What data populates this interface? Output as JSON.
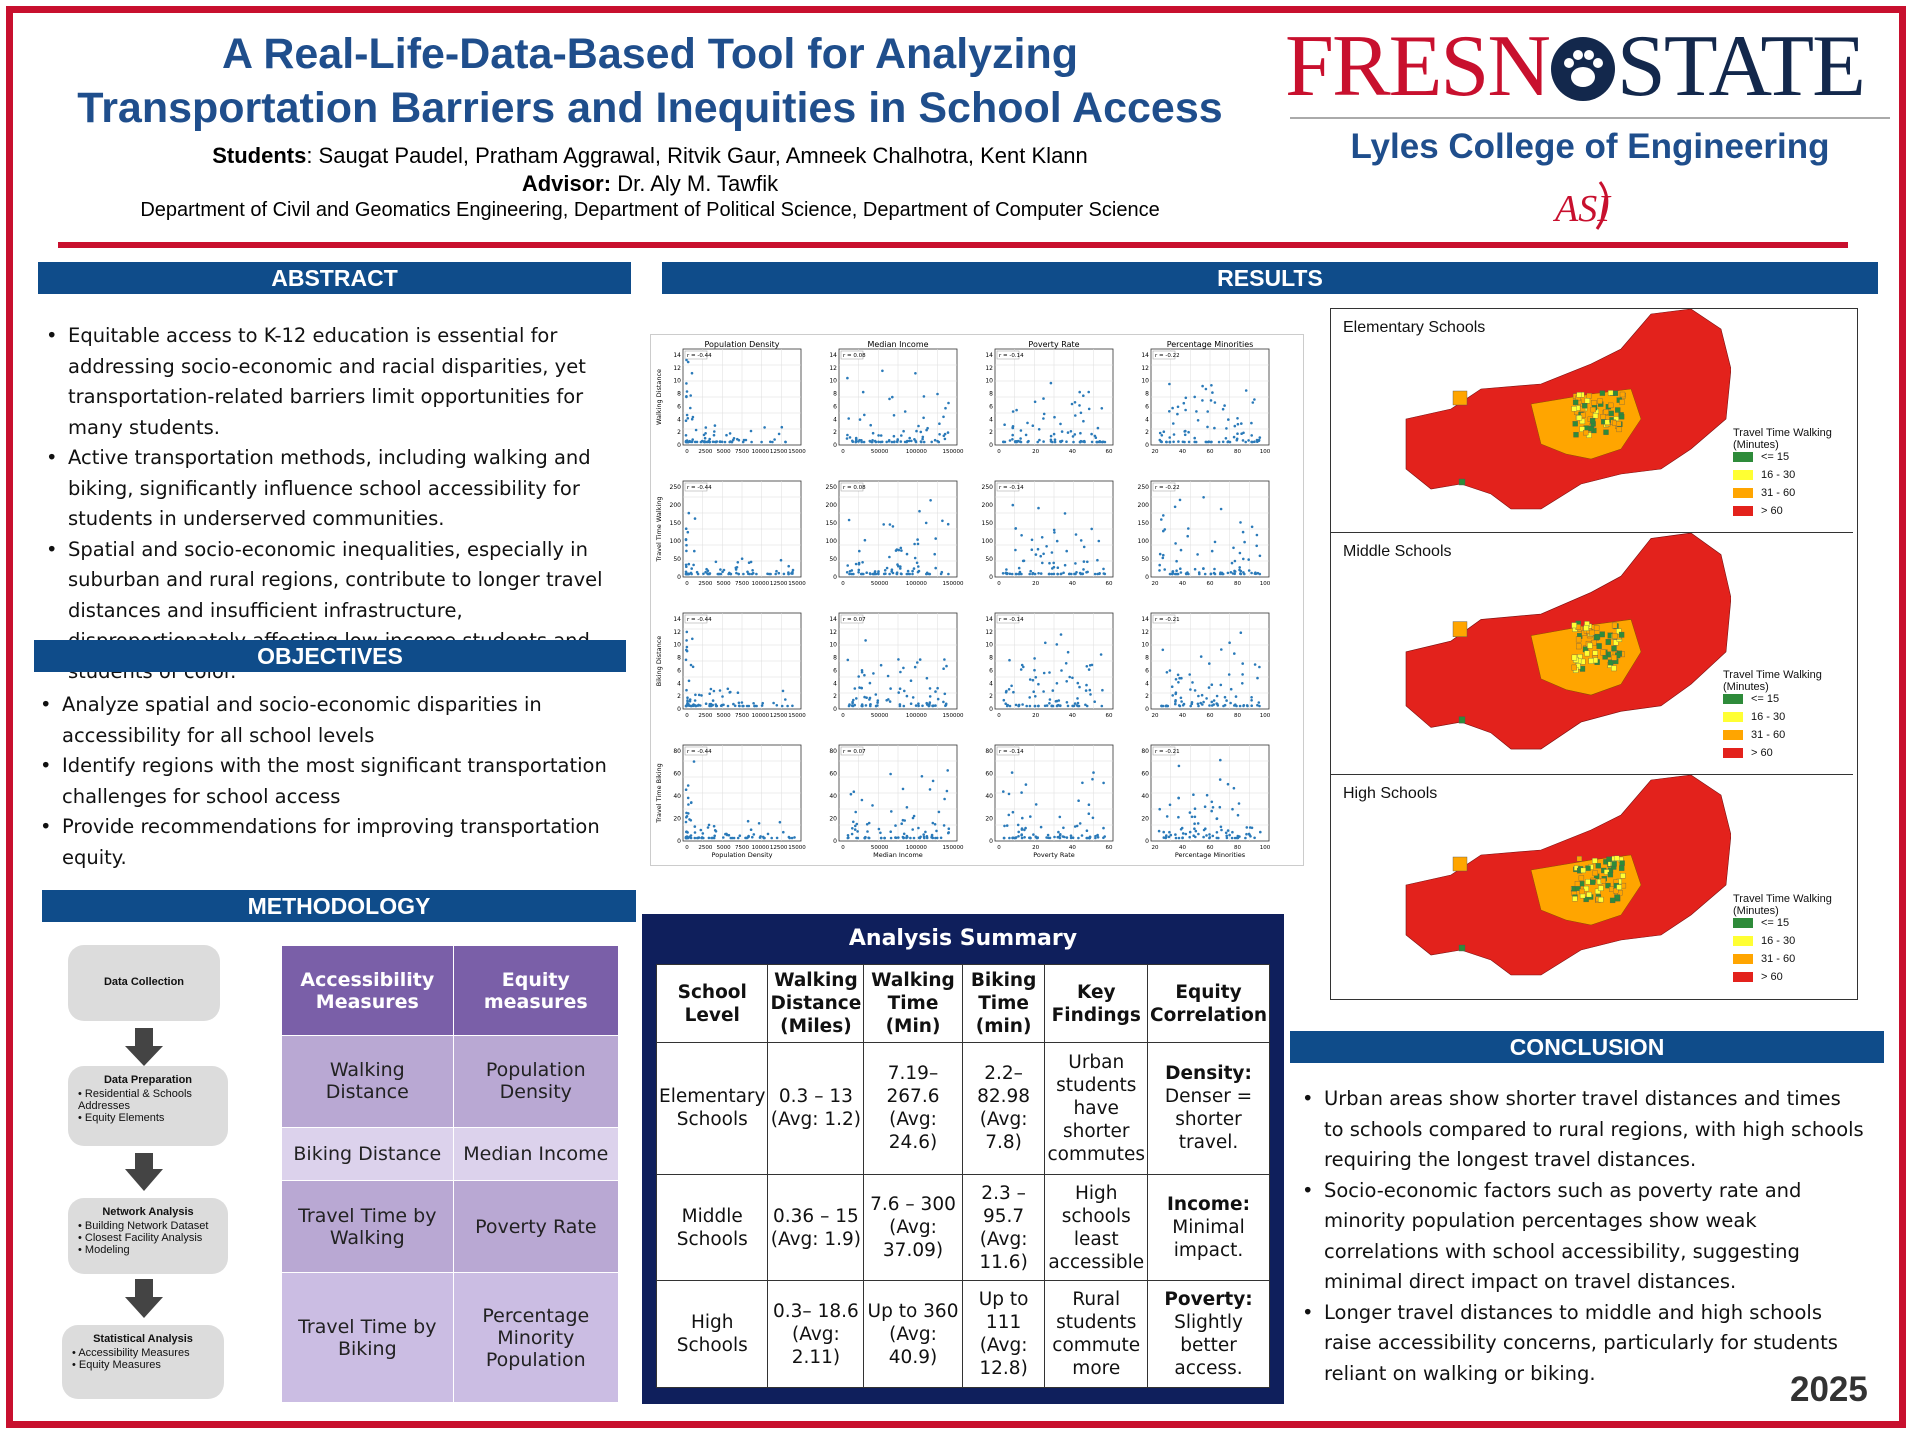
{
  "header": {
    "title_line1": "A Real-Life-Data-Based Tool for Analyzing",
    "title_line2": "Transportation Barriers and Inequities in School Access",
    "students_label": "Students",
    "students": ": Saugat Paudel, Pratham Aggrawal, Ritvik Gaur, Amneek Chalhotra, Kent Klann",
    "advisor_label": "Advisor:",
    "advisor": " Dr. Aly M. Tawfik",
    "departments": "Department of Civil and Geomatics Engineering, Department of Political Science, Department of Computer Science"
  },
  "logo": {
    "left": "FRESN",
    "right": "STATE",
    "college": "Lyles College of Engineering",
    "seal": "ASI"
  },
  "abstract": {
    "heading": "ABSTRACT",
    "items": [
      "Equitable access to K-12 education is essential for addressing socio-economic and racial disparities, yet transportation-related barriers limit opportunities for many students.",
      "Active transportation methods, including walking and biking, significantly influence school accessibility for students in underserved communities.",
      "Spatial and socio-economic inequalities, especially in suburban and rural regions, contribute to longer travel distances and insufficient infrastructure, disproportionately affecting low-income students and students of color."
    ]
  },
  "objectives": {
    "heading": "OBJECTIVES",
    "items": [
      "Analyze spatial and socio-economic disparities in accessibility for all school levels",
      "Identify regions with the most significant transportation challenges for school access",
      "Provide recommendations for improving transportation equity."
    ]
  },
  "methodology": {
    "heading": "METHODOLOGY",
    "flow": [
      {
        "title": "Data Collection",
        "items": []
      },
      {
        "title": "Data Preparation",
        "items": [
          "Residential & Schools Addresses",
          "Equity Elements"
        ]
      },
      {
        "title": "Network Analysis",
        "items": [
          "Building Network Dataset",
          "Closest Facility Analysis",
          "Modeling"
        ]
      },
      {
        "title": "Statistical Analysis",
        "items": [
          "Accessibility Measures",
          "Equity Measures"
        ]
      }
    ],
    "table": {
      "headers": [
        "Accessibility Measures",
        "Equity measures"
      ],
      "rows": [
        [
          "Walking Distance",
          "Population Density"
        ],
        [
          "Biking Distance",
          "Median Income"
        ],
        [
          "Travel Time by Walking",
          "Poverty Rate"
        ],
        [
          "Travel Time by Biking",
          "Percentage Minority Population"
        ]
      ]
    }
  },
  "results": {
    "heading": "RESULTS",
    "scatter": {
      "col_titles": [
        "Population Density",
        "Median Income",
        "Poverty Rate",
        "Percentage Minorities"
      ],
      "row_labels": [
        "Walking Distance",
        "Travel Time Walking",
        "Biking Distance",
        "Travel Time Biking"
      ],
      "r_values": [
        [
          "r = -0.44",
          "r = 0.08",
          "r = -0.14",
          "r = -0.22"
        ],
        [
          "r = -0.44",
          "r = 0.08",
          "r = -0.14",
          "r = -0.22"
        ],
        [
          "r = -0.44",
          "r = 0.07",
          "r = -0.14",
          "r = -0.21"
        ],
        [
          "r = -0.44",
          "r = 0.07",
          "r = -0.14",
          "r = -0.21"
        ]
      ],
      "x_ticks": [
        [
          "0",
          "2500",
          "5000",
          "7500",
          "10000",
          "12500",
          "15000"
        ],
        [
          "0",
          "50000",
          "100000",
          "150000"
        ],
        [
          "0",
          "20",
          "40",
          "60"
        ],
        [
          "20",
          "40",
          "60",
          "80",
          "100"
        ]
      ],
      "x_labels": [
        "Population Density",
        "Median Income",
        "Poverty Rate",
        "Percentage Minorities"
      ],
      "y_ticks": [
        [
          "0",
          "2",
          "4",
          "6",
          "8",
          "10",
          "12",
          "14"
        ],
        [
          "0",
          "50",
          "100",
          "150",
          "200",
          "250"
        ],
        [
          "0",
          "2",
          "4",
          "6",
          "8",
          "10",
          "12",
          "14"
        ],
        [
          "0",
          "20",
          "40",
          "60",
          "80"
        ]
      ]
    },
    "maps": [
      {
        "label": "Elementary Schools"
      },
      {
        "label": "Middle Schools"
      },
      {
        "label": "High Schools"
      }
    ],
    "legend": {
      "title": "Travel Time Walking\n(Minutes)",
      "items": [
        {
          "label": "<= 15",
          "color": "#2e8b3a"
        },
        {
          "label": "16 - 30",
          "color": "#ffff33"
        },
        {
          "label": "31 - 60",
          "color": "#ffa500"
        },
        {
          "label": "> 60",
          "color": "#e3221c"
        }
      ]
    }
  },
  "summary": {
    "title": "Analysis Summary",
    "headers": [
      "School Level",
      "Walking Distance (Miles)",
      "Walking Time (Min)",
      "Biking Time (min)",
      "Key Findings",
      "Equity Correlation"
    ],
    "rows": [
      {
        "level": "Elementary Schools",
        "wd": "0.3 – 13 (Avg: 1.2)",
        "wt": "7.19–267.6 (Avg: 24.6)",
        "bt": "2.2–82.98 (Avg: 7.8)",
        "kf": "Urban students have shorter commutes",
        "eq_label": "Density:",
        "eq": "Denser = shorter travel."
      },
      {
        "level": "Middle Schools",
        "wd": "0.36 – 15 (Avg: 1.9)",
        "wt": "7.6 – 300 (Avg: 37.09)",
        "bt": "2.3 – 95.7 (Avg: 11.6)",
        "kf": "High schools least accessible",
        "eq_label": "Income:",
        "eq": "Minimal impact."
      },
      {
        "level": "High Schools",
        "wd": "0.3– 18.6 (Avg: 2.11)",
        "wt": "Up to 360 (Avg: 40.9)",
        "bt": "Up to 111 (Avg: 12.8)",
        "kf": "Rural students commute more",
        "eq_label": "Poverty:",
        "eq": "Slightly better access."
      }
    ]
  },
  "conclusion": {
    "heading": "CONCLUSION",
    "items": [
      "Urban areas show shorter travel distances and times to schools compared to rural regions, with high schools requiring the longest travel distances.",
      "Socio-economic factors such as poverty rate and minority population percentages show weak correlations with school accessibility, suggesting minimal direct impact on travel distances.",
      "Longer travel distances to middle and high schools raise accessibility concerns, particularly for students reliant on walking or biking."
    ]
  },
  "year": "2025"
}
